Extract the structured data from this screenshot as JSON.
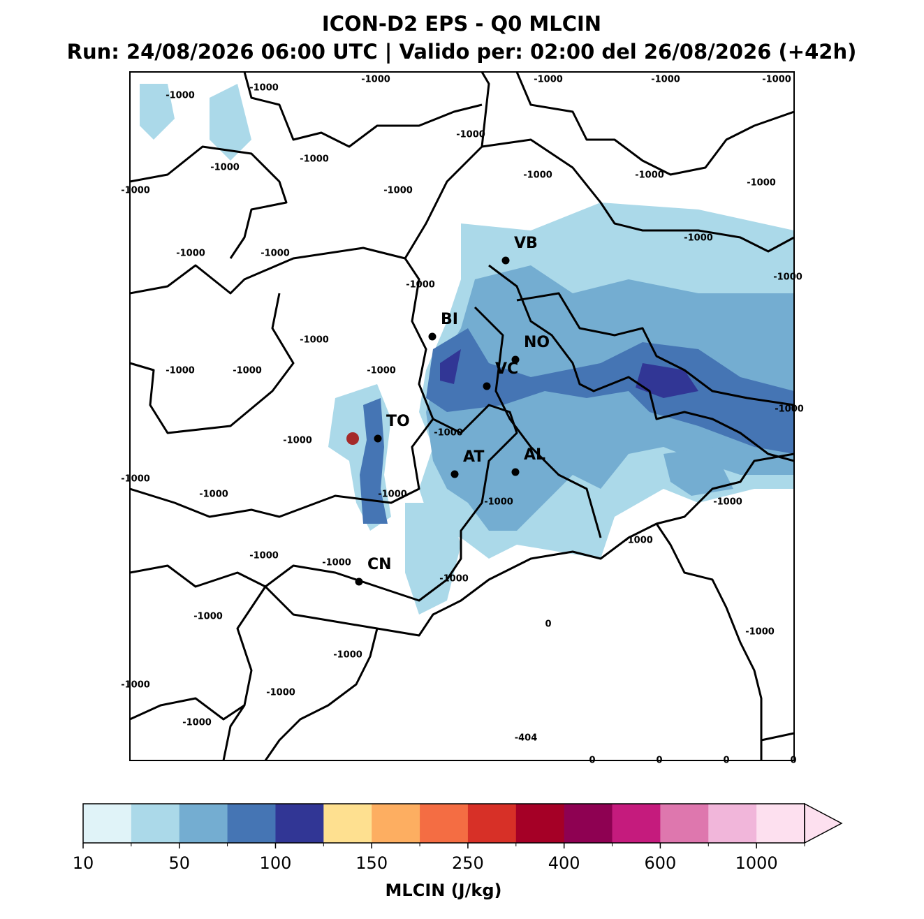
{
  "header": {
    "title": "ICON-D2 EPS - Q0 MLCIN",
    "subtitle": "Run: 24/08/2026 06:00 UTC | Valido per: 02:00 del 26/08/2026 (+42h)"
  },
  "map": {
    "cities": [
      {
        "label": "VB"
      },
      {
        "label": "BI"
      },
      {
        "label": "NO"
      },
      {
        "label": "VC"
      },
      {
        "label": "TO"
      },
      {
        "label": "AT"
      },
      {
        "label": "AL"
      },
      {
        "label": "CN"
      }
    ],
    "contour_labels": [
      -1000,
      -1000,
      -1000,
      -1000,
      -1000,
      -1000,
      -1000,
      -1000,
      -1000,
      -1000,
      -1000,
      -1000,
      -1000,
      -1000,
      -1000,
      -1000,
      -1000,
      -1000,
      -1000,
      -1000,
      -1000,
      -1000,
      -1000,
      -1000,
      -1000,
      -1000,
      -1000,
      -1000,
      -1000,
      -1000,
      -1000,
      -1000,
      -1000,
      -1000,
      -1000,
      -1000,
      -1000,
      -1000,
      -1000,
      -1000,
      -1000,
      0,
      -404,
      0,
      0,
      0,
      0
    ]
  },
  "colorbar": {
    "label": "MLCIN (J/kg)",
    "colors": [
      "#e0f3f8",
      "#abd9e9",
      "#74add1",
      "#4575b4",
      "#313695",
      "#fee090",
      "#fdae61",
      "#f46d43",
      "#d73027",
      "#a50026",
      "#8e0152",
      "#c51b7d",
      "#de77ae",
      "#f1b6da",
      "#fde0ef"
    ],
    "extend_color": "#fde0ef",
    "ticks": [
      10,
      50,
      100,
      150,
      250,
      400,
      600,
      1000
    ]
  }
}
